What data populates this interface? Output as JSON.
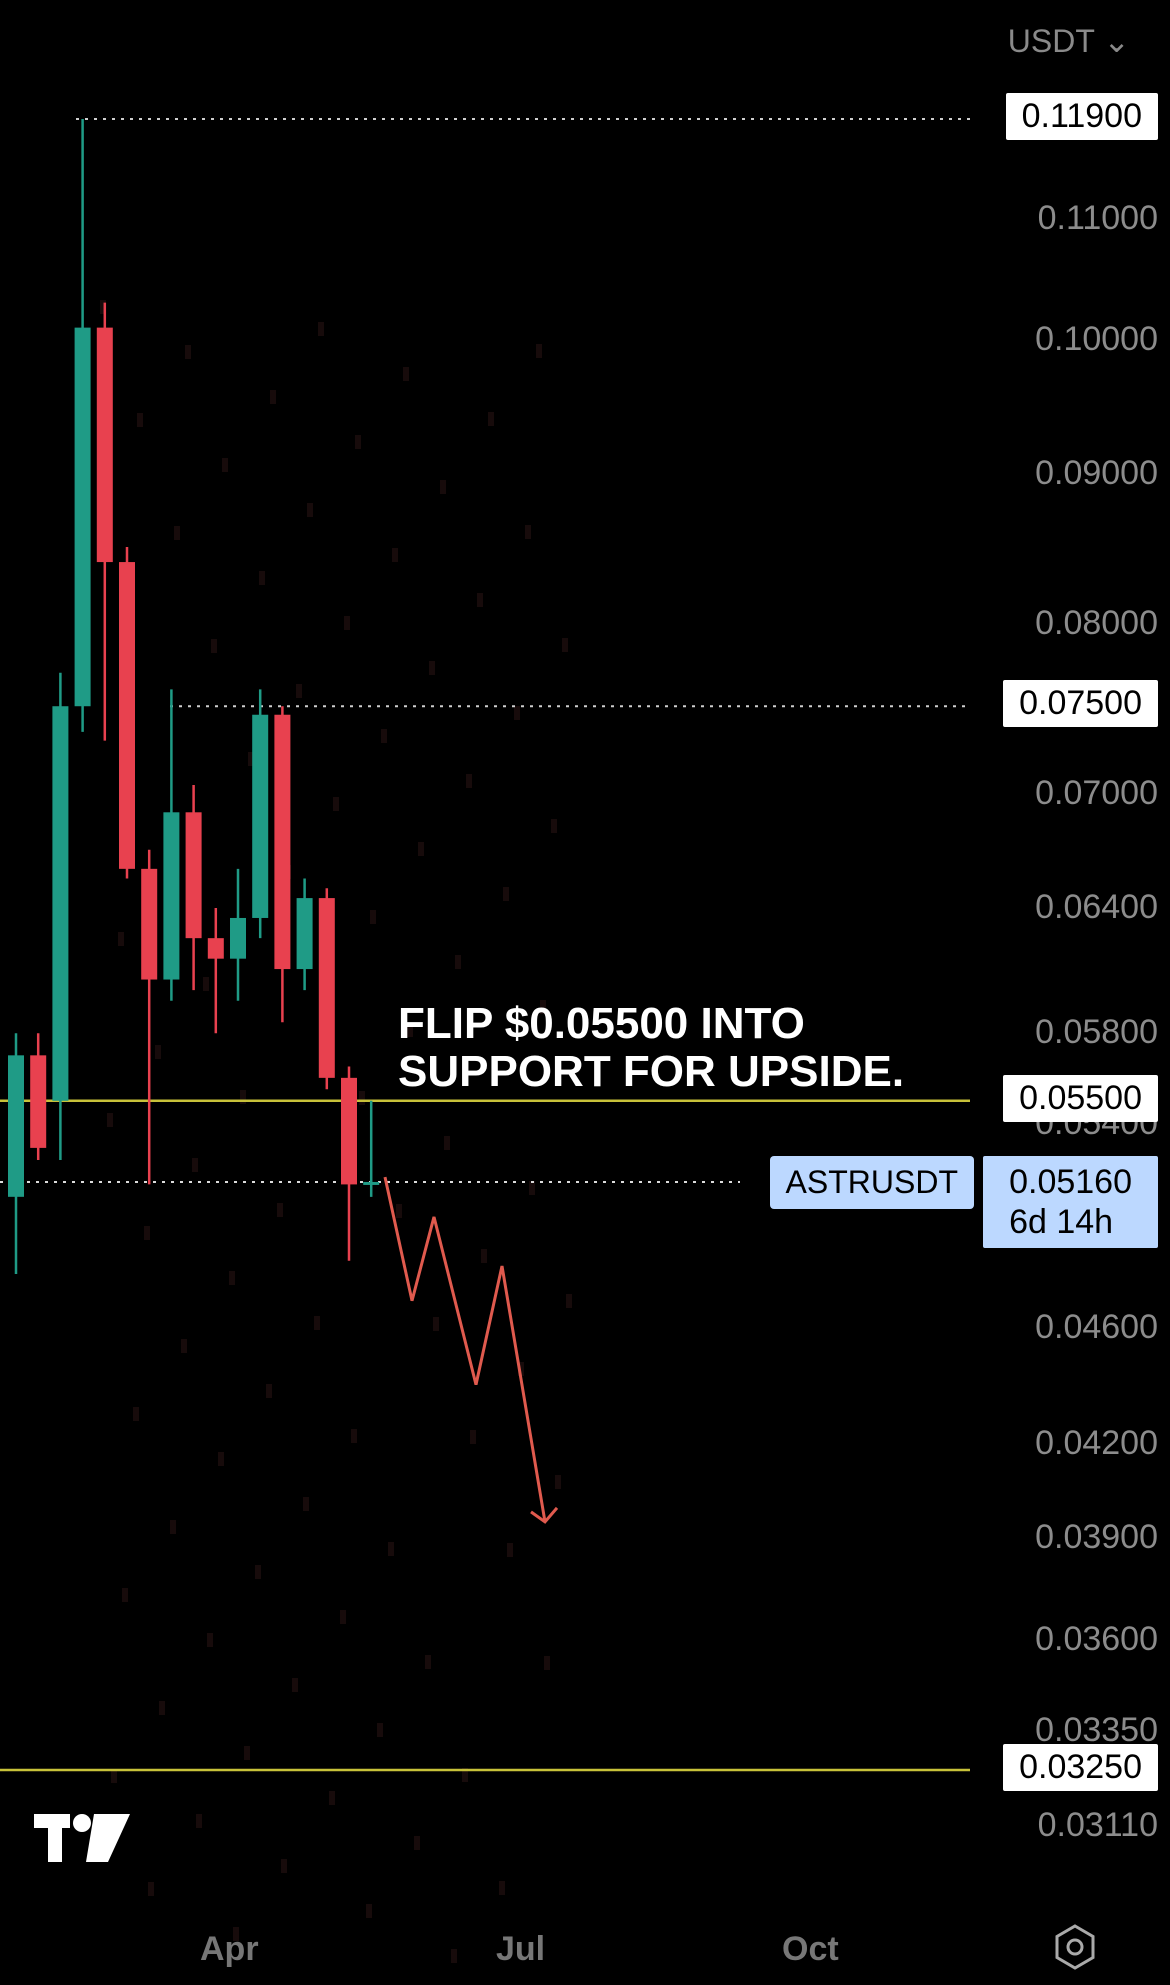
{
  "header": {
    "currency": "USDT",
    "currency_caret": "⌄"
  },
  "chart_data": {
    "type": "candlestick",
    "symbol": "ASTRUSDT",
    "y_axis_labels": [
      "0.11000",
      "0.10000",
      "0.09000",
      "0.08000",
      "0.07000",
      "0.06400",
      "0.05800",
      "0.05400",
      "0.04600",
      "0.04200",
      "0.03900",
      "0.03600",
      "0.03350",
      "0.03110"
    ],
    "x_axis_labels": [
      "Apr",
      "Jul",
      "Oct"
    ],
    "highlighted_levels": [
      {
        "value": "0.11900",
        "style": "dotted"
      },
      {
        "value": "0.07500",
        "style": "dotted"
      },
      {
        "value": "0.05500",
        "style": "solid",
        "color": "#c8c23a"
      },
      {
        "value": "0.03250",
        "style": "solid",
        "color": "#c8c23a"
      }
    ],
    "current_price": {
      "value": "0.05160",
      "countdown": "6d 14h"
    },
    "annotation": [
      "FLIP $0.05500 INTO",
      "SUPPORT FOR UPSIDE."
    ],
    "candles": [
      {
        "o": 0.051,
        "h": 0.058,
        "l": 0.048,
        "c": 0.057
      },
      {
        "o": 0.057,
        "h": 0.058,
        "l": 0.0525,
        "c": 0.053
      },
      {
        "o": 0.055,
        "h": 0.077,
        "l": 0.0525,
        "c": 0.075
      },
      {
        "o": 0.075,
        "h": 0.119,
        "l": 0.0735,
        "c": 0.101
      },
      {
        "o": 0.101,
        "h": 0.103,
        "l": 0.073,
        "c": 0.084
      },
      {
        "o": 0.084,
        "h": 0.085,
        "l": 0.0655,
        "c": 0.066
      },
      {
        "o": 0.066,
        "h": 0.067,
        "l": 0.0515,
        "c": 0.0605
      },
      {
        "o": 0.0605,
        "h": 0.076,
        "l": 0.0595,
        "c": 0.069
      },
      {
        "o": 0.069,
        "h": 0.0705,
        "l": 0.06,
        "c": 0.0625
      },
      {
        "o": 0.0625,
        "h": 0.064,
        "l": 0.058,
        "c": 0.0615
      },
      {
        "o": 0.0615,
        "h": 0.066,
        "l": 0.0595,
        "c": 0.0635
      },
      {
        "o": 0.0635,
        "h": 0.076,
        "l": 0.0625,
        "c": 0.0745
      },
      {
        "o": 0.0745,
        "h": 0.075,
        "l": 0.0585,
        "c": 0.061
      },
      {
        "o": 0.061,
        "h": 0.0655,
        "l": 0.06,
        "c": 0.0645
      },
      {
        "o": 0.0645,
        "h": 0.065,
        "l": 0.0555,
        "c": 0.056
      },
      {
        "o": 0.056,
        "h": 0.0565,
        "l": 0.0485,
        "c": 0.0515
      },
      {
        "o": 0.0515,
        "h": 0.055,
        "l": 0.051,
        "c": 0.0516
      }
    ],
    "projection_path": [
      0.0518,
      0.047,
      0.0502,
      0.044,
      0.0483,
      0.0395
    ]
  }
}
